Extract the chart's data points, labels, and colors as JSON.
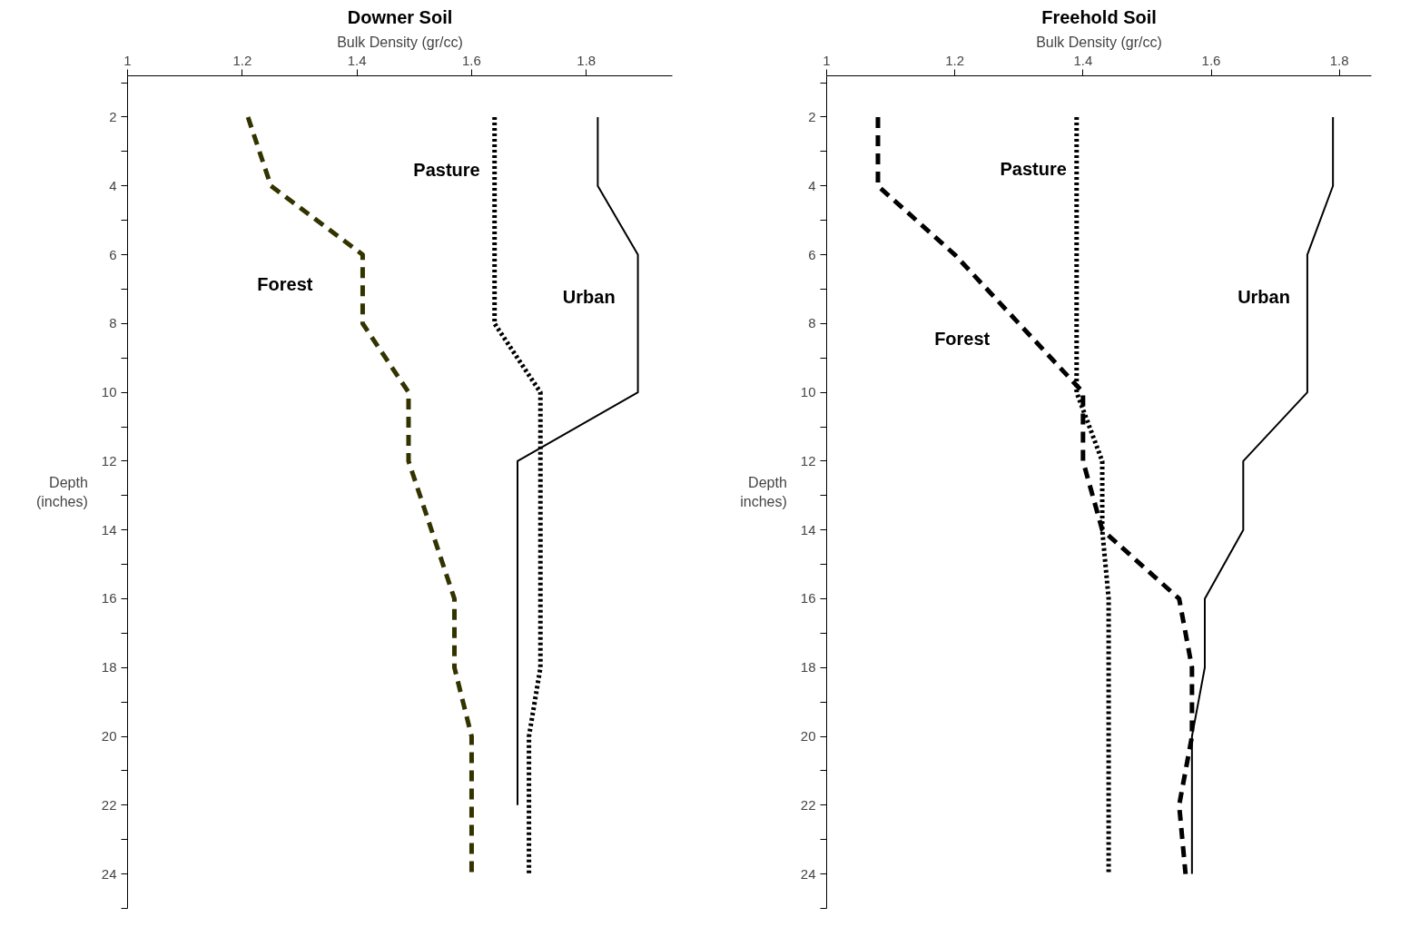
{
  "chart_data": [
    {
      "type": "line",
      "title": "Downer Soil",
      "xlabel": "Bulk Density (gr/cc)",
      "ylabel": "Depth\n(inches)",
      "xlim": [
        1,
        1.95
      ],
      "xticks": [
        1,
        1.2,
        1.4,
        1.6,
        1.8
      ],
      "ylim": [
        25,
        0.8
      ],
      "yticks": [
        {
          "value": 1,
          "label": null
        },
        2,
        {
          "value": 3,
          "label": null
        },
        4,
        {
          "value": 5,
          "label": null
        },
        6,
        {
          "value": 7,
          "label": null
        },
        8,
        {
          "value": 9,
          "label": null
        },
        10,
        {
          "value": 11,
          "label": null
        },
        12,
        {
          "value": 13,
          "label": null
        },
        14,
        {
          "value": 15,
          "label": null
        },
        16,
        {
          "value": 17,
          "label": null
        },
        18,
        {
          "value": 19,
          "label": null
        },
        20,
        {
          "value": 21,
          "label": null
        },
        22,
        {
          "value": 23,
          "label": null
        },
        24,
        {
          "value": 25,
          "label": null
        }
      ],
      "grid": false,
      "series": [
        {
          "name": "Forest",
          "color": "#333300",
          "line_style": "dashed",
          "x": [
            1.21,
            1.25,
            1.41,
            1.41,
            1.49,
            1.49,
            1.53,
            1.57,
            1.57,
            1.6,
            1.6
          ],
          "values": [
            2,
            4,
            6,
            8,
            10,
            12,
            14,
            16,
            18,
            20,
            24
          ]
        },
        {
          "name": "Pasture",
          "color": "#000000",
          "line_style": "dotted",
          "x": [
            1.64,
            1.64,
            1.72,
            1.72,
            1.7,
            1.7
          ],
          "values": [
            2,
            8,
            10,
            18,
            20,
            24
          ]
        },
        {
          "name": "Urban",
          "color": "#000000",
          "line_style": "solid",
          "x": [
            1.82,
            1.82,
            1.89,
            1.89,
            1.68,
            1.68
          ],
          "values": [
            2,
            4,
            6,
            10,
            12,
            22
          ]
        }
      ]
    },
    {
      "type": "line",
      "title": "Freehold Soil",
      "xlabel": "Bulk Density (gr/cc)",
      "ylabel": "Depth\ninches)",
      "xlim": [
        1,
        1.85
      ],
      "xticks": [
        1,
        1.2,
        1.4,
        1.6,
        1.8
      ],
      "ylim": [
        25,
        0.8
      ],
      "yticks": [
        {
          "value": 1,
          "label": null
        },
        2,
        {
          "value": 3,
          "label": null
        },
        4,
        {
          "value": 5,
          "label": null
        },
        6,
        {
          "value": 7,
          "label": null
        },
        8,
        {
          "value": 9,
          "label": null
        },
        10,
        {
          "value": 11,
          "label": null
        },
        12,
        {
          "value": 13,
          "label": null
        },
        14,
        {
          "value": 15,
          "label": null
        },
        16,
        {
          "value": 17,
          "label": null
        },
        18,
        {
          "value": 19,
          "label": null
        },
        20,
        {
          "value": 21,
          "label": null
        },
        22,
        {
          "value": 23,
          "label": null
        },
        24,
        {
          "value": 25,
          "label": null
        }
      ],
      "grid": false,
      "series": [
        {
          "name": "Forest",
          "color": "#000000",
          "line_style": "dashed",
          "x": [
            1.08,
            1.08,
            1.2,
            1.3,
            1.4,
            1.4,
            1.43,
            1.55,
            1.57,
            1.57,
            1.55,
            1.56
          ],
          "values": [
            2,
            4,
            6,
            8,
            10,
            12,
            14,
            16,
            18,
            20,
            22,
            24
          ]
        },
        {
          "name": "Pasture",
          "color": "#000000",
          "line_style": "dotted",
          "x": [
            1.39,
            1.39,
            1.43,
            1.43,
            1.44,
            1.44
          ],
          "values": [
            2,
            10,
            12,
            14,
            16,
            24
          ]
        },
        {
          "name": "Urban",
          "color": "#000000",
          "line_style": "solid",
          "x": [
            1.79,
            1.79,
            1.75,
            1.75,
            1.65,
            1.65,
            1.59,
            1.59,
            1.57,
            1.57
          ],
          "values": [
            2,
            4,
            6,
            10,
            12,
            14,
            16,
            18,
            20,
            24
          ]
        }
      ]
    }
  ]
}
